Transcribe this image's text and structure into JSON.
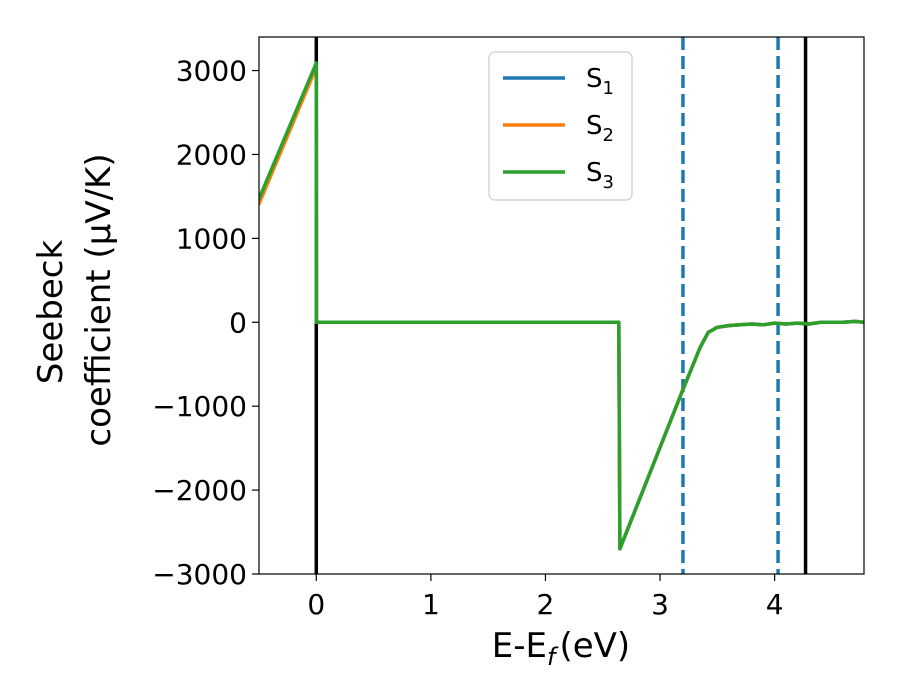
{
  "chart_data": {
    "type": "line",
    "title": "",
    "xlabel": "E-E",
    "xlabel_subscript": "f",
    "xlabel_unit": "(eV)",
    "ylabel_line1": "Seebeck",
    "ylabel_line2": "coefficient  (μV/K)",
    "xlim": [
      -0.5,
      4.78
    ],
    "ylim": [
      -3000,
      3400
    ],
    "xticks": [
      0,
      1,
      2,
      3,
      4
    ],
    "xtick_labels": [
      "0",
      "1",
      "2",
      "3",
      "4"
    ],
    "yticks": [
      -3000,
      -2000,
      -1000,
      0,
      1000,
      2000,
      3000
    ],
    "ytick_labels": [
      "−3000",
      "−2000",
      "−1000",
      "0",
      "1000",
      "2000",
      "3000"
    ],
    "grid": false,
    "legend_position": "top-center",
    "vlines": [
      {
        "x": 0,
        "style": "solid",
        "color": "#000000"
      },
      {
        "x": 4.27,
        "style": "solid",
        "color": "#000000"
      },
      {
        "x": 3.2,
        "style": "dashed",
        "color": "#1f77b4"
      },
      {
        "x": 4.03,
        "style": "dashed",
        "color": "#1f77b4"
      }
    ],
    "series": [
      {
        "name": "S",
        "subscript": "1",
        "color": "#1f77b4",
        "x": [
          -0.5,
          0,
          0.001,
          2.64,
          2.65,
          3.2,
          3.35,
          3.42,
          3.5,
          3.6,
          3.7,
          3.8,
          3.9,
          4.0,
          4.1,
          4.2,
          4.3,
          4.4,
          4.5,
          4.6,
          4.7,
          4.78
        ],
        "y": [
          1430,
          3060,
          0,
          0,
          -2700,
          -800,
          -300,
          -120,
          -60,
          -40,
          -30,
          -20,
          -30,
          -10,
          -20,
          -10,
          -20,
          0,
          0,
          0,
          10,
          0
        ]
      },
      {
        "name": "S",
        "subscript": "2",
        "color": "#ff7f0e",
        "x": [
          -0.5,
          0,
          0.001,
          2.64,
          2.65,
          3.2,
          3.35,
          3.42,
          3.5,
          3.6,
          3.7,
          3.8,
          3.9,
          4.0,
          4.1,
          4.2,
          4.3,
          4.4,
          4.5,
          4.6,
          4.7,
          4.78
        ],
        "y": [
          1410,
          3040,
          0,
          0,
          -2700,
          -800,
          -300,
          -120,
          -60,
          -40,
          -30,
          -20,
          -30,
          -10,
          -20,
          -10,
          -20,
          0,
          0,
          0,
          10,
          0
        ]
      },
      {
        "name": "S",
        "subscript": "3",
        "color": "#2ca02c",
        "x": [
          -0.5,
          0,
          0.001,
          2.64,
          2.65,
          3.2,
          3.35,
          3.42,
          3.5,
          3.6,
          3.7,
          3.8,
          3.9,
          4.0,
          4.1,
          4.2,
          4.3,
          4.4,
          4.5,
          4.6,
          4.7,
          4.78
        ],
        "y": [
          1470,
          3090,
          0,
          0,
          -2700,
          -800,
          -300,
          -120,
          -60,
          -40,
          -30,
          -20,
          -30,
          -10,
          -20,
          -10,
          -20,
          0,
          0,
          0,
          10,
          0
        ]
      }
    ]
  }
}
